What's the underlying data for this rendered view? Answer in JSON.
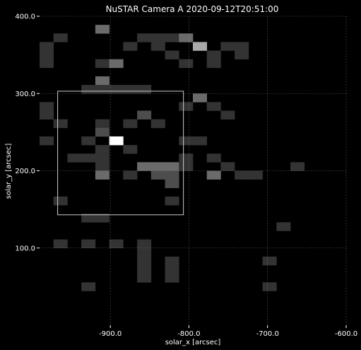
{
  "chart_data": {
    "type": "heatmap",
    "title": "NuSTAR Camera A 2020-09-12T20:51:00",
    "xlabel": "solar_x [arcsec]",
    "ylabel": "solar_y [arcsec]",
    "xlim": [
      -990,
      -600
    ],
    "ylim": [
      0,
      400
    ],
    "xticks": [
      {
        "value": -900,
        "label": "-900.0"
      },
      {
        "value": -800,
        "label": "-800.0"
      },
      {
        "value": -700,
        "label": "-700.0"
      },
      {
        "value": -600,
        "label": "-600.0"
      }
    ],
    "yticks": [
      {
        "value": 100,
        "label": "100.0"
      },
      {
        "value": 200,
        "label": "200.0"
      },
      {
        "value": 300,
        "label": "300.0"
      },
      {
        "value": 400,
        "label": "400.0"
      }
    ],
    "grid": true,
    "colormap": "greys",
    "rows_top_to_bottom": [
      "0000000000000000000000",
      "0000300000000000000000",
      "0100000111300000000000",
      "1000001010050110000000",
      "1000000001001010000000",
      "1000130000101000000000",
      "0000000000000000000000",
      "0000300000000000000000",
      "0001111100000000000000",
      "0000000000030000000000",
      "1000000000101000000000",
      "1000000200000100000000",
      "0100101010000000000000",
      "0000200000000000000000",
      "1001060000110000000000",
      "0000101000000000000000",
      "0011100000101000000000",
      "0000100333100100001000",
      "0000301022003011000000",
      "0000000002000000000000",
      "0000000000000000000000",
      "0100000001000000000000",
      "0000000000000000000000",
      "0001100000000000000000",
      "0000000000000000010000",
      "0000000000000000000000",
      "0101010100000000000000",
      "0000000100000000000000",
      "0000000101000000100000",
      "0000000101000000000000",
      "0000000101000000000000",
      "0001000000000000100000",
      "0000000000000000000000",
      "0000000000000000000000",
      "0000000000000000000000",
      "0000000000000000000000"
    ],
    "level_colors": [
      "#000000",
      "#333333",
      "#4d4d4d",
      "#6b6b6b",
      "#8a8a8a",
      "#a8a8a8",
      "#ffffff"
    ],
    "rectangle": {
      "x0": -967,
      "x1": -807,
      "y0": 143,
      "y1": 303,
      "color": "#cccccc"
    }
  }
}
